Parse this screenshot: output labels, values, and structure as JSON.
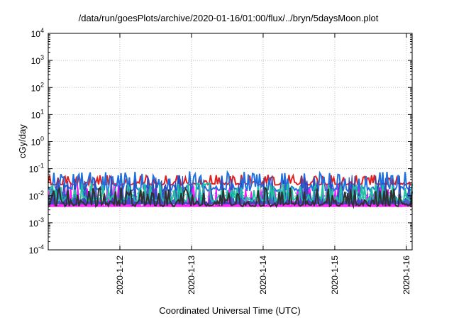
{
  "chart_data": {
    "type": "line",
    "title": "/data/run/goesPlots/archive/2020-01-16/01:00/flux/../bryn/5daysMoon.plot",
    "xlabel": "Coordinated Universal Time (UTC)",
    "ylabel": "cGy/day",
    "yscale": "log",
    "ylim_exponents": [
      -4,
      4
    ],
    "y_ticks": [
      {
        "base": "10",
        "exp": "-4"
      },
      {
        "base": "10",
        "exp": "-3"
      },
      {
        "base": "10",
        "exp": "-2"
      },
      {
        "base": "10",
        "exp": "-1"
      },
      {
        "base": "10",
        "exp": "0"
      },
      {
        "base": "10",
        "exp": "1"
      },
      {
        "base": "10",
        "exp": "2"
      },
      {
        "base": "10",
        "exp": "3"
      },
      {
        "base": "10",
        "exp": "4"
      }
    ],
    "x_range_days": [
      11.0,
      16.08
    ],
    "x_ticks": [
      {
        "label": "2020-1-12",
        "day": 12
      },
      {
        "label": "2020-1-13",
        "day": 13
      },
      {
        "label": "2020-1-14",
        "day": 14
      },
      {
        "label": "2020-1-15",
        "day": 15
      },
      {
        "label": "2020-1-16",
        "day": 16
      }
    ],
    "grid": true,
    "series": [
      {
        "color": "#ff00ff",
        "style": "filled-band",
        "approx_range": [
          0.004,
          0.03
        ]
      },
      {
        "color": "#e02020",
        "approx_range": [
          0.025,
          0.06
        ]
      },
      {
        "color": "#1f6fe0",
        "approx_range": [
          0.015,
          0.08
        ]
      },
      {
        "color": "#2e46b8",
        "style": "filled-band",
        "approx_range": [
          0.005,
          0.06
        ]
      },
      {
        "color": "#20c0a0",
        "approx_range": [
          0.006,
          0.03
        ]
      },
      {
        "color": "#00b0b0",
        "style": "dotted",
        "approx_range": [
          0.008,
          0.015
        ]
      },
      {
        "color": "#303030",
        "approx_range": [
          0.004,
          0.02
        ]
      }
    ]
  }
}
